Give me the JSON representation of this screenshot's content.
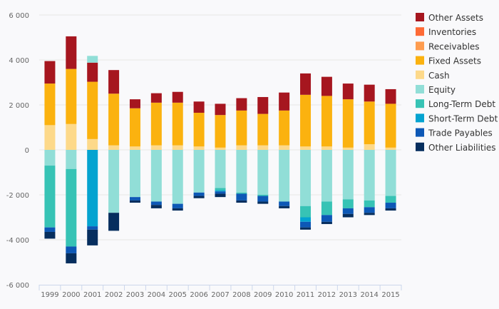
{
  "chart_data": {
    "type": "bar",
    "stacked": true,
    "categories": [
      "1999",
      "2000",
      "2001",
      "2002",
      "2003",
      "2004",
      "2005",
      "2006",
      "2007",
      "2008",
      "2009",
      "2010",
      "2011",
      "2012",
      "2013",
      "2014",
      "2015"
    ],
    "ylim": [
      -6000,
      6000
    ],
    "yticks": [
      -6000,
      -4000,
      -2000,
      0,
      2000,
      4000,
      6000
    ],
    "ytick_labels": [
      "-6 000",
      "-4 000",
      "-2 000",
      "0",
      "2 000",
      "4 000",
      "6 000"
    ],
    "grid": true,
    "legend_position": "right",
    "assets": [
      {
        "name": "Cash",
        "color": "#fdd98a",
        "values": [
          1100,
          1150,
          480,
          200,
          150,
          200,
          200,
          150,
          100,
          200,
          200,
          200,
          150,
          150,
          100,
          250,
          100
        ]
      },
      {
        "name": "Fixed Assets",
        "color": "#fbb20f",
        "values": [
          1850,
          2450,
          2550,
          2300,
          1700,
          1900,
          1900,
          1500,
          1450,
          1550,
          1400,
          1550,
          2300,
          2250,
          2150,
          1900,
          1950
        ]
      },
      {
        "name": "Receivables",
        "color": "#fe9c4f",
        "values": [
          0,
          0,
          0,
          0,
          0,
          0,
          0,
          0,
          0,
          0,
          0,
          0,
          0,
          0,
          0,
          0,
          0
        ]
      },
      {
        "name": "Inventories",
        "color": "#fe6a35",
        "values": [
          0,
          0,
          0,
          0,
          0,
          0,
          0,
          0,
          0,
          0,
          0,
          0,
          0,
          0,
          0,
          0,
          0
        ]
      },
      {
        "name": "Other Assets",
        "color": "#a6161f",
        "values": [
          1000,
          1450,
          850,
          1050,
          400,
          420,
          480,
          500,
          500,
          550,
          750,
          800,
          950,
          850,
          700,
          750,
          650
        ]
      }
    ],
    "liabilities": [
      {
        "name": "Equity",
        "color": "#91ded7",
        "values": [
          700,
          850,
          0,
          2800,
          2100,
          2300,
          2400,
          1900,
          1700,
          1900,
          2000,
          2300,
          2500,
          2300,
          2200,
          2250,
          2050
        ]
      },
      {
        "name": "Long-Term Debt",
        "color": "#37c3b5",
        "values": [
          2750,
          3450,
          0,
          0,
          0,
          0,
          0,
          0,
          100,
          50,
          50,
          0,
          500,
          600,
          400,
          300,
          300
        ]
      },
      {
        "name": "Short-Term Debt",
        "color": "#04a3d0",
        "values": [
          0,
          0,
          3400,
          0,
          0,
          0,
          0,
          0,
          50,
          0,
          0,
          0,
          200,
          0,
          0,
          0,
          0
        ]
      },
      {
        "name": "Trade Payables",
        "color": "#0d58b6",
        "values": [
          200,
          300,
          150,
          0,
          150,
          150,
          200,
          150,
          100,
          300,
          250,
          200,
          250,
          300,
          250,
          250,
          250
        ]
      },
      {
        "name": "Other Liabilities",
        "color": "#062e5e",
        "values": [
          300,
          450,
          700,
          800,
          100,
          150,
          100,
          100,
          150,
          100,
          100,
          100,
          100,
          100,
          150,
          100,
          100
        ]
      }
    ],
    "equity_top_2001": 300,
    "legend": [
      {
        "label": "Other Assets",
        "color": "#a6161f"
      },
      {
        "label": "Inventories",
        "color": "#fe6a35"
      },
      {
        "label": "Receivables",
        "color": "#fe9c4f"
      },
      {
        "label": "Fixed Assets",
        "color": "#fbb20f"
      },
      {
        "label": "Cash",
        "color": "#fdd98a"
      },
      {
        "label": "Equity",
        "color": "#91ded7"
      },
      {
        "label": "Long-Term Debt",
        "color": "#37c3b5"
      },
      {
        "label": "Short-Term Debt",
        "color": "#04a3d0"
      },
      {
        "label": "Trade Payables",
        "color": "#0d58b6"
      },
      {
        "label": "Other Liabilities",
        "color": "#062e5e"
      }
    ]
  }
}
